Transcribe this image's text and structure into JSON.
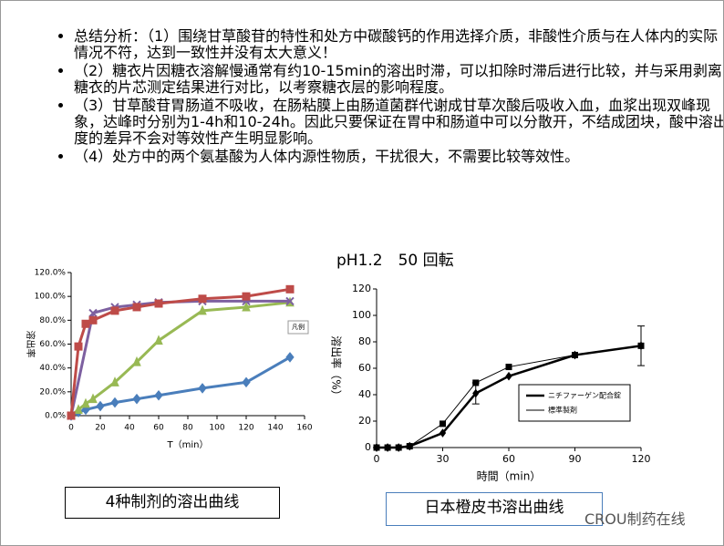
{
  "bullets": [
    "总结分析：（1）围绕甘草酸苷的特性和处方中碳酸钙的作用选择介质，非酸性介质与在人体内的实际情况不符，达到一致性并没有太大意义！",
    "（2）糖衣片因糖衣溶解慢通常有约10-15min的溶出时滞，可以扣除时滞后进行比较，并与采用剥离糖衣的片芯测定结果进行对比，以考察糖衣层的影响程度。",
    "（3）甘草酸苷胃肠道不吸收，在肠粘膜上由肠道菌群代谢成甘草次酸后吸收入血，血浆出现双峰现象，达峰时分别为1-4h和10-24h。因此只要保证在胃中和肠道中可以分散开，不结成团块，酸中溶出度的差异不会对等效性产生明显影响。",
    "（4）处方中的两个氨基酸为人体内源性物质，干扰很大，不需要比较等效性。"
  ],
  "captions": [
    "4种制剂的溶出曲线",
    "日本橙皮书溶出曲线"
  ],
  "watermark": "CROU制药在线",
  "chart_data": [
    {
      "type": "line",
      "xlabel": "T（min）",
      "ylabel": "溶出率",
      "legend_label": "凡例",
      "xlim": [
        0,
        160
      ],
      "xticks": [
        0,
        20,
        40,
        60,
        80,
        100,
        120,
        140,
        160
      ],
      "ylim": [
        0,
        120
      ],
      "yticks": [
        {
          "value": 0,
          "label": "0.0%"
        },
        {
          "value": 20,
          "label": "20.0%"
        },
        {
          "value": 40,
          "label": "40.0%"
        },
        {
          "value": 60,
          "label": "60.0%"
        },
        {
          "value": 80,
          "label": "80.0%"
        },
        {
          "value": 100,
          "label": "100.0%"
        },
        {
          "value": 120,
          "label": "120.0%"
        }
      ],
      "series": [
        {
          "color": "#4a7ebb",
          "marker": "diamond",
          "x": [
            0,
            5,
            10,
            20,
            30,
            45,
            60,
            90,
            120,
            150
          ],
          "values": [
            0,
            3,
            5,
            8,
            11,
            14,
            17,
            23,
            28,
            49
          ]
        },
        {
          "color": "#98b954",
          "marker": "triangle",
          "x": [
            0,
            5,
            10,
            15,
            30,
            45,
            60,
            90,
            120,
            150
          ],
          "values": [
            0,
            5,
            10,
            14,
            28,
            45,
            63,
            88,
            91,
            95
          ]
        },
        {
          "color": "#7d60a0",
          "marker": "cross",
          "x": [
            0,
            15,
            30,
            45,
            60,
            90,
            120,
            150
          ],
          "values": [
            0,
            86,
            91,
            93,
            95,
            96,
            96,
            96
          ]
        },
        {
          "color": "#be4b48",
          "marker": "square",
          "x": [
            0,
            5,
            10,
            15,
            30,
            45,
            60,
            90,
            120,
            150
          ],
          "values": [
            0,
            58,
            77,
            80,
            88,
            91,
            94,
            98,
            100,
            106
          ]
        }
      ]
    },
    {
      "type": "line",
      "title": "pH1.2　50 回転",
      "xlabel": "時間（min）",
      "ylabel": "溶出率（%）",
      "xlim": [
        0,
        120
      ],
      "xticks": [
        0,
        30,
        60,
        90,
        120
      ],
      "ylim": [
        0,
        120
      ],
      "yticks": [
        0,
        20,
        40,
        60,
        80,
        100,
        120
      ],
      "series": [
        {
          "name": "ニチファーゲン配合錠",
          "color": "#000000",
          "marker": "diamond",
          "width": 2.5,
          "x": [
            0,
            5,
            10,
            15,
            30,
            45,
            60,
            90,
            120
          ],
          "values": [
            0,
            0,
            0,
            1,
            11,
            41,
            54,
            70,
            77
          ],
          "errors": [
            null,
            null,
            null,
            null,
            null,
            8,
            null,
            null,
            15
          ]
        },
        {
          "name": "標準製剤",
          "color": "#000000",
          "marker": "square",
          "width": 1,
          "x": [
            0,
            5,
            10,
            15,
            30,
            45,
            60,
            90,
            120
          ],
          "values": [
            0,
            0,
            0,
            1,
            18,
            49,
            61,
            70,
            77
          ]
        }
      ]
    }
  ]
}
